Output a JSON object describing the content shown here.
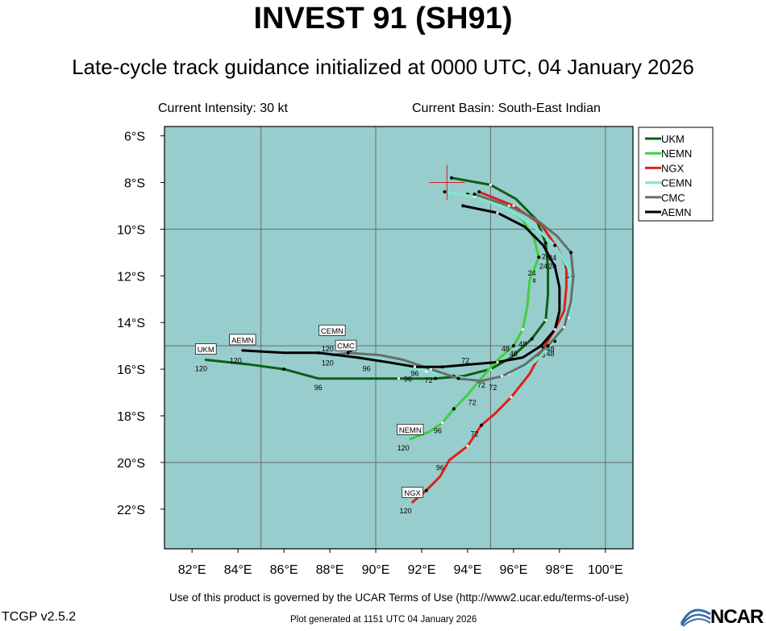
{
  "header": {
    "title": "INVEST 91 (SH91)",
    "subtitle": "Late-cycle track guidance initialized at 0000 UTC, 04 January 2026",
    "intensity": "Current Intensity: 30 kt",
    "basin": "Current Basin: South-East Indian"
  },
  "footer": {
    "terms": "Use of this product is governed by the UCAR Terms of Use (http://www2.ucar.edu/terms-of-use)",
    "version": "TCGP v2.5.2",
    "generated": "Plot generated at 1151 UTC   04 January 2026",
    "logo_text": "NCAR"
  },
  "map": {
    "lon_range": [
      80.8,
      101.2
    ],
    "lat_range": [
      -23.7,
      -5.6
    ],
    "ocean_color": "#98cdcd",
    "grid_lons": [
      85,
      90,
      95,
      100
    ],
    "grid_lats": [
      -10,
      -15,
      -20
    ],
    "lon_ticks": [
      82,
      84,
      86,
      88,
      90,
      92,
      94,
      96,
      98,
      100
    ],
    "lon_tick_labels": [
      "82°E",
      "84°E",
      "86°E",
      "88°E",
      "90°E",
      "92°E",
      "94°E",
      "96°E",
      "98°E",
      "100°E"
    ],
    "lat_ticks": [
      -6,
      -8,
      -10,
      -12,
      -14,
      -16,
      -18,
      -20,
      -22
    ],
    "lat_tick_labels": [
      "6°S",
      "8°S",
      "10°S",
      "12°S",
      "14°S",
      "16°S",
      "18°S",
      "20°S",
      "22°S"
    ],
    "current_position": {
      "lon": 93.1,
      "lat": -8.0
    },
    "island": {
      "lon": 96.9,
      "lat": -12.2
    }
  },
  "legend": [
    {
      "name": "UKM",
      "color": "#0d5f17"
    },
    {
      "name": "NEMN",
      "color": "#3fcf3f"
    },
    {
      "name": "NGX",
      "color": "#e0201a"
    },
    {
      "name": "CEMN",
      "color": "#7ee8cf"
    },
    {
      "name": "CMC",
      "color": "#6c6c6c"
    },
    {
      "name": "AEMN",
      "color": "#000000"
    }
  ],
  "tracks": [
    {
      "name": "UKM",
      "color": "#0d5f17",
      "points": [
        [
          93.3,
          -7.8
        ],
        [
          95.0,
          -8.1
        ],
        [
          96.1,
          -8.7
        ],
        [
          97.0,
          -9.6
        ],
        [
          97.4,
          -10.6
        ],
        [
          97.5,
          -11.6
        ],
        [
          97.5,
          -12.8
        ],
        [
          97.4,
          -13.9
        ],
        [
          96.8,
          -14.7
        ],
        [
          95.9,
          -15.5
        ],
        [
          95.0,
          -16.0
        ],
        [
          93.8,
          -16.3
        ],
        [
          92.6,
          -16.4
        ],
        [
          91.0,
          -16.4
        ],
        [
          89.3,
          -16.4
        ],
        [
          87.5,
          -16.4
        ],
        [
          86.0,
          -16.0
        ],
        [
          84.5,
          -15.8
        ],
        [
          82.6,
          -15.6
        ]
      ],
      "labels": [
        {
          "text": "24",
          "lon": 97.3,
          "lat": -11.55
        },
        {
          "text": "48",
          "lon": 96.4,
          "lat": -14.9
        },
        {
          "text": "72",
          "lon": 92.3,
          "lat": -16.45
        },
        {
          "text": "96",
          "lon": 87.5,
          "lat": -16.75
        },
        {
          "text": "120",
          "lon": 82.4,
          "lat": -15.95
        }
      ]
    },
    {
      "name": "NEMN",
      "color": "#3fcf3f",
      "points": [
        [
          94.0,
          -8.5
        ],
        [
          95.5,
          -8.9
        ],
        [
          96.4,
          -9.6
        ],
        [
          96.9,
          -10.4
        ],
        [
          97.1,
          -11.2
        ],
        [
          96.7,
          -12.2
        ],
        [
          96.6,
          -13.3
        ],
        [
          96.4,
          -14.3
        ],
        [
          96.0,
          -15.0
        ],
        [
          95.2,
          -15.7
        ],
        [
          94.5,
          -16.5
        ],
        [
          94.0,
          -17.1
        ],
        [
          93.4,
          -17.7
        ],
        [
          92.9,
          -18.3
        ],
        [
          92.3,
          -18.7
        ],
        [
          91.5,
          -19.0
        ]
      ],
      "labels": [
        {
          "text": "24",
          "lon": 96.8,
          "lat": -11.85
        },
        {
          "text": "48",
          "lon": 95.65,
          "lat": -15.1
        },
        {
          "text": "72",
          "lon": 94.2,
          "lat": -17.4
        },
        {
          "text": "96",
          "lon": 92.7,
          "lat": -18.6
        },
        {
          "text": "120",
          "lon": 91.2,
          "lat": -19.35
        }
      ]
    },
    {
      "name": "NGX",
      "color": "#e0201a",
      "points": [
        [
          94.5,
          -8.4
        ],
        [
          96.0,
          -9.0
        ],
        [
          97.2,
          -9.8
        ],
        [
          97.9,
          -10.8
        ],
        [
          98.3,
          -11.6
        ],
        [
          98.3,
          -12.5
        ],
        [
          98.2,
          -13.5
        ],
        [
          97.8,
          -14.3
        ],
        [
          97.3,
          -15.1
        ],
        [
          96.7,
          -16.2
        ],
        [
          95.9,
          -17.2
        ],
        [
          95.2,
          -17.9
        ],
        [
          94.6,
          -18.4
        ],
        [
          94.0,
          -19.3
        ],
        [
          93.2,
          -19.9
        ],
        [
          92.8,
          -20.6
        ],
        [
          92.2,
          -21.2
        ],
        [
          91.6,
          -21.7
        ]
      ],
      "labels": [
        {
          "text": "24",
          "lon": 98.5,
          "lat": -11.95
        },
        {
          "text": "48",
          "lon": 97.2,
          "lat": -15.35
        },
        {
          "text": "72",
          "lon": 94.3,
          "lat": -18.75
        },
        {
          "text": "96",
          "lon": 92.8,
          "lat": -20.2
        },
        {
          "text": "120",
          "lon": 91.3,
          "lat": -22.05
        }
      ]
    },
    {
      "name": "CEMN",
      "color": "#7ee8cf",
      "points": [
        [
          93.0,
          -8.4
        ],
        [
          94.3,
          -8.6
        ],
        [
          95.7,
          -9.1
        ],
        [
          96.8,
          -9.8
        ],
        [
          97.8,
          -10.7
        ],
        [
          98.4,
          -11.7
        ],
        [
          98.6,
          -12.8
        ],
        [
          98.4,
          -13.8
        ],
        [
          97.8,
          -14.8
        ],
        [
          96.9,
          -15.7
        ],
        [
          95.8,
          -16.2
        ],
        [
          94.6,
          -16.5
        ],
        [
          93.4,
          -16.3
        ],
        [
          92.2,
          -16.1
        ],
        [
          90.9,
          -15.8
        ],
        [
          89.7,
          -15.4
        ],
        [
          88.9,
          -15.2
        ]
      ],
      "labels": [
        {
          "text": "24",
          "lon": 97.4,
          "lat": -11.15
        },
        {
          "text": "48",
          "lon": 97.6,
          "lat": -15.1
        },
        {
          "text": "72",
          "lon": 94.6,
          "lat": -16.65
        },
        {
          "text": "96",
          "lon": 91.7,
          "lat": -16.15
        },
        {
          "text": "120",
          "lon": 87.9,
          "lat": -15.1
        }
      ]
    },
    {
      "name": "CMC",
      "color": "#6c6c6c",
      "points": [
        [
          94.3,
          -8.5
        ],
        [
          95.8,
          -9.0
        ],
        [
          97.0,
          -9.6
        ],
        [
          97.9,
          -10.3
        ],
        [
          98.5,
          -11.0
        ],
        [
          98.6,
          -12.0
        ],
        [
          98.5,
          -13.1
        ],
        [
          98.2,
          -14.2
        ],
        [
          97.5,
          -15.0
        ],
        [
          96.5,
          -15.8
        ],
        [
          95.5,
          -16.3
        ],
        [
          94.6,
          -16.5
        ],
        [
          93.6,
          -16.4
        ],
        [
          92.4,
          -16.0
        ],
        [
          91.2,
          -15.6
        ],
        [
          90.2,
          -15.4
        ],
        [
          88.8,
          -15.3
        ],
        [
          88.1,
          -15.4
        ]
      ],
      "labels": [
        {
          "text": "24",
          "lon": 97.7,
          "lat": -11.2
        },
        {
          "text": "48",
          "lon": 97.6,
          "lat": -15.3
        },
        {
          "text": "72",
          "lon": 95.1,
          "lat": -16.75
        },
        {
          "text": "96",
          "lon": 89.6,
          "lat": -15.95
        },
        {
          "text": "120",
          "lon": 87.9,
          "lat": -15.7
        }
      ]
    },
    {
      "name": "AEMN",
      "color": "#000000",
      "points": [
        [
          93.8,
          -9.0
        ],
        [
          95.3,
          -9.3
        ],
        [
          96.5,
          -9.9
        ],
        [
          97.3,
          -10.7
        ],
        [
          97.8,
          -11.6
        ],
        [
          98.0,
          -12.5
        ],
        [
          98.0,
          -13.5
        ],
        [
          97.8,
          -14.3
        ],
        [
          97.2,
          -15.0
        ],
        [
          96.4,
          -15.5
        ],
        [
          95.3,
          -15.7
        ],
        [
          94.1,
          -15.8
        ],
        [
          92.9,
          -15.9
        ],
        [
          91.7,
          -15.9
        ],
        [
          90.5,
          -15.7
        ],
        [
          89.2,
          -15.5
        ],
        [
          87.5,
          -15.3
        ],
        [
          86.0,
          -15.3
        ],
        [
          84.2,
          -15.2
        ]
      ],
      "labels": [
        {
          "text": "24",
          "lon": 97.7,
          "lat": -11.55
        },
        {
          "text": "48",
          "lon": 96.0,
          "lat": -15.3
        },
        {
          "text": "72",
          "lon": 93.9,
          "lat": -15.6
        },
        {
          "text": "96",
          "lon": 91.4,
          "lat": -16.4
        },
        {
          "text": "120",
          "lon": 83.9,
          "lat": -15.6
        }
      ]
    }
  ],
  "end_labels": [
    {
      "text": "UKM",
      "lon": 82.6,
      "lat": -15.15
    },
    {
      "text": "AEMN",
      "lon": 84.2,
      "lat": -14.75
    },
    {
      "text": "CEMN",
      "lon": 88.1,
      "lat": -14.35
    },
    {
      "text": "CMC",
      "lon": 88.7,
      "lat": -15.0
    },
    {
      "text": "NEMN",
      "lon": 91.5,
      "lat": -18.6
    },
    {
      "text": "NGX",
      "lon": 91.6,
      "lat": -21.3
    }
  ]
}
